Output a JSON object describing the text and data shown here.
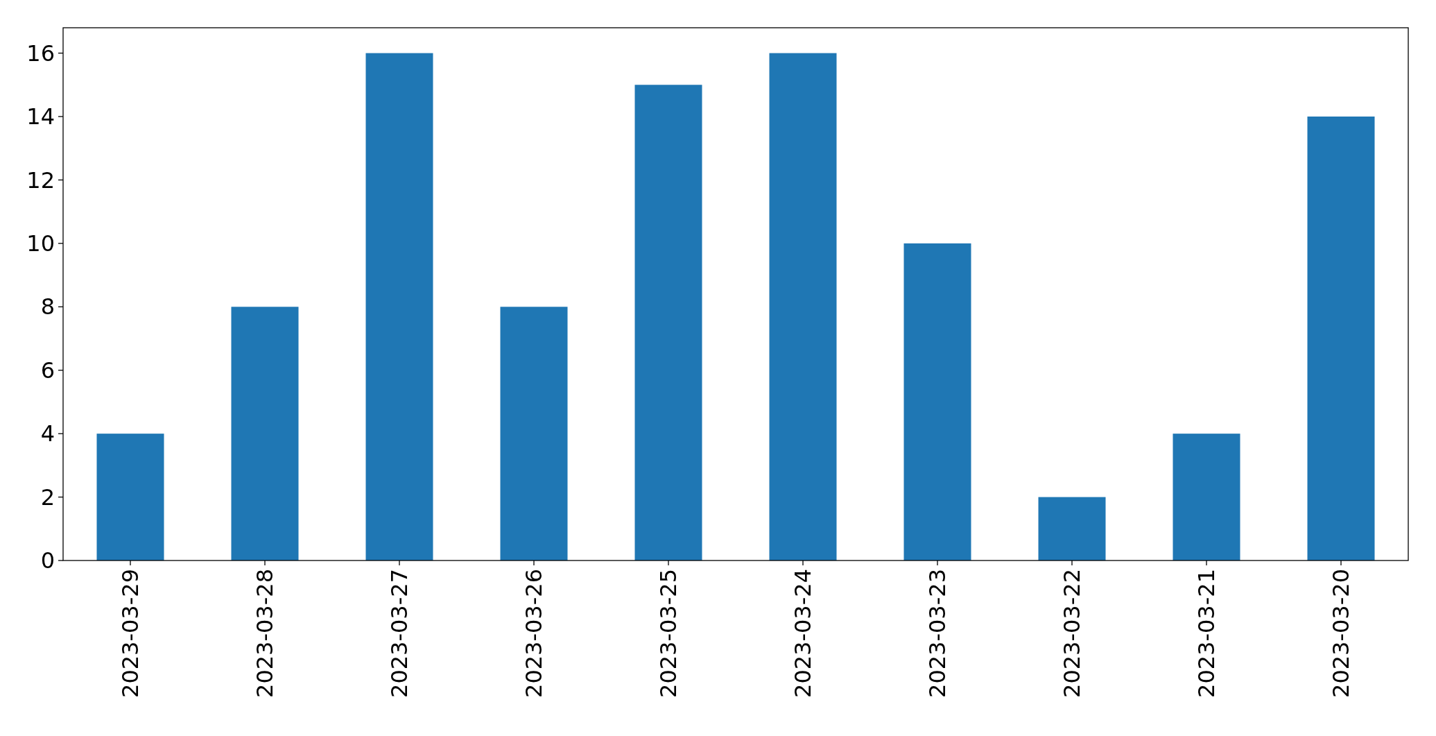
{
  "chart_data": {
    "type": "bar",
    "categories": [
      "2023-03-29",
      "2023-03-28",
      "2023-03-27",
      "2023-03-26",
      "2023-03-25",
      "2023-03-24",
      "2023-03-23",
      "2023-03-22",
      "2023-03-21",
      "2023-03-20"
    ],
    "values": [
      4,
      8,
      16,
      8,
      15,
      16,
      10,
      2,
      4,
      14
    ],
    "color": "#1f77b4",
    "ylim": [
      0,
      16.8
    ],
    "yticks": [
      0,
      2,
      4,
      6,
      8,
      10,
      12,
      14,
      16
    ],
    "grid": false
  }
}
